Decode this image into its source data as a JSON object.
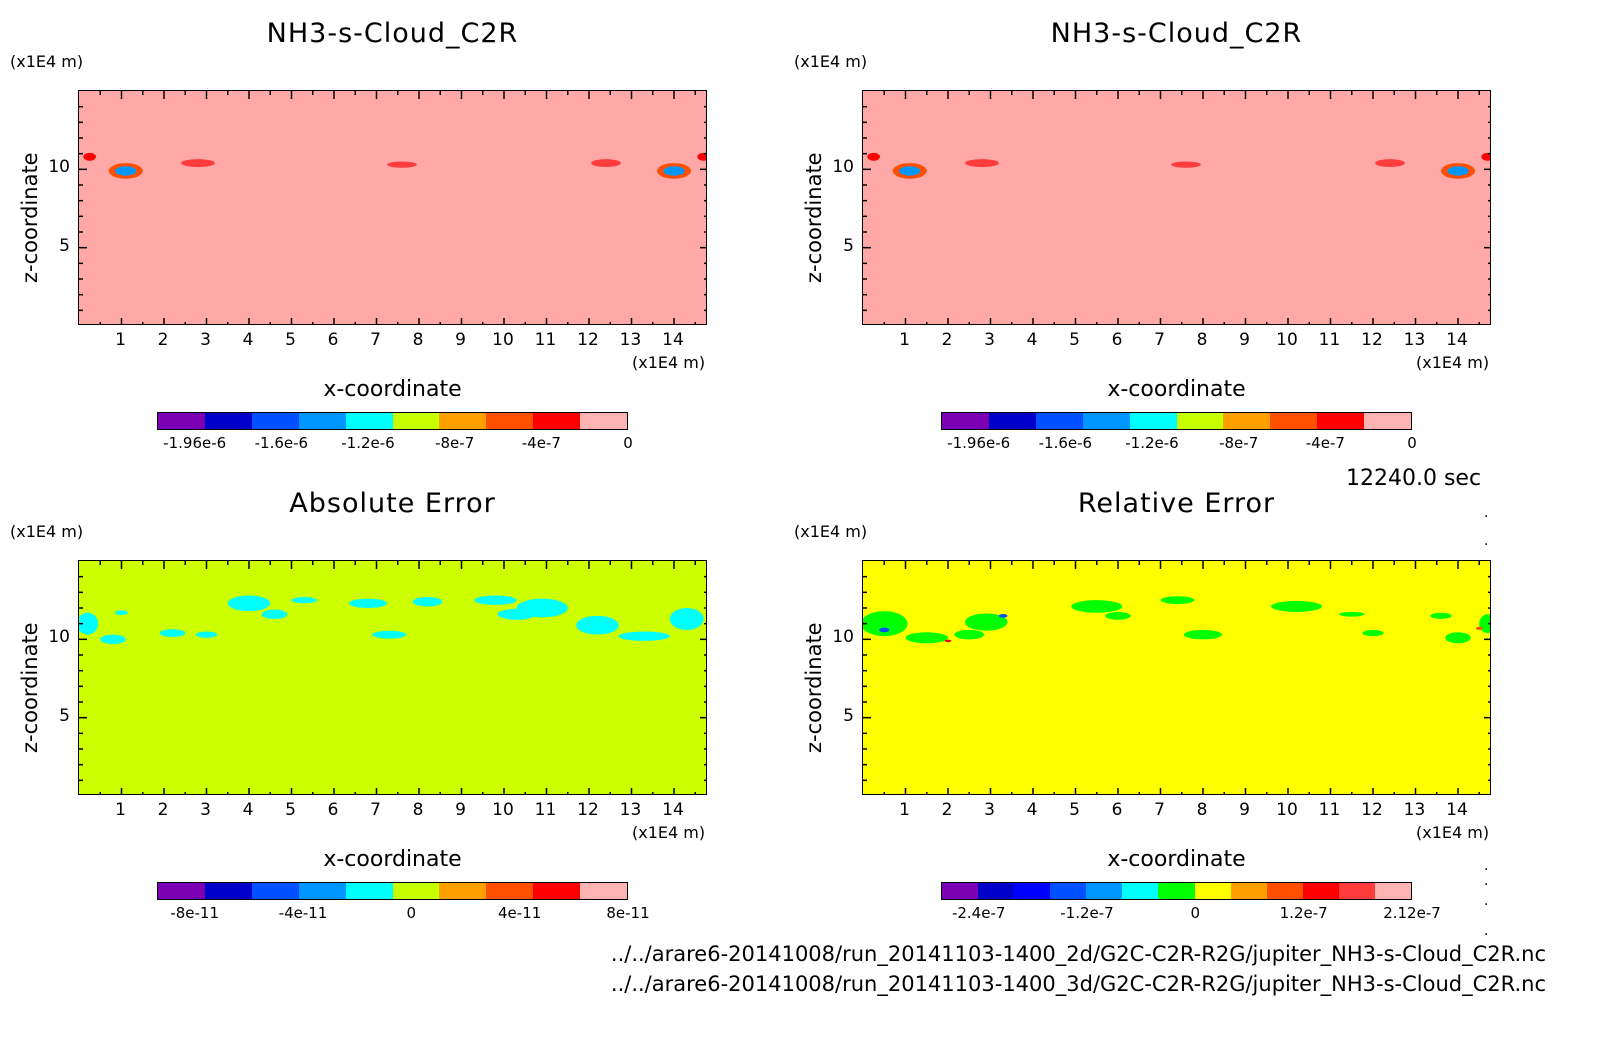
{
  "time_label": "12240.0 sec",
  "footer": {
    "line1": "../../arare6-20141008/run_20141103-1400_2d/G2C-C2R-R2G/jupiter_NH3-s-Cloud_C2R.nc",
    "line2": "../../arare6-20141008/run_20141103-1400_3d/G2C-C2R-R2G/jupiter_NH3-s-Cloud_C2R.nc"
  },
  "colors": {
    "nh3_scale": [
      "#7b00b4",
      "#0000c8",
      "#0050ff",
      "#0096ff",
      "#00ffff",
      "#c8ff00",
      "#ffa000",
      "#ff5000",
      "#ff0000",
      "#ffb4b4"
    ],
    "abs_scale": [
      "#7b00b4",
      "#0000c8",
      "#0050ff",
      "#0096ff",
      "#00ffff",
      "#c8ff00",
      "#ffa000",
      "#ff5000",
      "#ff0000",
      "#ffb4b4"
    ],
    "rel_scale": [
      "#7b00b4",
      "#0000c8",
      "#0000ff",
      "#0050ff",
      "#0096ff",
      "#00ffff",
      "#00ff00",
      "#ffff00",
      "#ffa000",
      "#ff5000",
      "#ff0000",
      "#ff3c3c",
      "#ffb4b4"
    ]
  },
  "chart_data": [
    {
      "type": "heatmap",
      "title": "NH3-s-Cloud_C2R",
      "xlabel": "x-coordinate",
      "ylabel": "z-coordinate",
      "x_unit": "(x1E4 m)",
      "y_unit": "(x1E4 m)",
      "xlim": [
        0,
        14.8
      ],
      "ylim": [
        0,
        15
      ],
      "x_ticks": [
        "1",
        "2",
        "3",
        "4",
        "5",
        "6",
        "7",
        "8",
        "9",
        "10",
        "11",
        "12",
        "13",
        "14"
      ],
      "y_ticks": [
        "5",
        "10"
      ],
      "background": "#ffa8a8",
      "colorbar_labels": [
        "-1.96e-6",
        "-1.6e-6",
        "-1.2e-6",
        "-8e-7",
        "-4e-7",
        "0"
      ],
      "features": [
        {
          "x": 1.1,
          "y": 9.9,
          "w": 0.4,
          "h": 0.5,
          "color": "#ff5000"
        },
        {
          "x": 1.1,
          "y": 9.9,
          "w": 0.25,
          "h": 0.3,
          "color": "#0096ff"
        },
        {
          "x": 2.8,
          "y": 10.4,
          "w": 0.4,
          "h": 0.25,
          "color": "#ff3c3c"
        },
        {
          "x": 7.6,
          "y": 10.3,
          "w": 0.35,
          "h": 0.2,
          "color": "#ff3c3c"
        },
        {
          "x": 12.4,
          "y": 10.4,
          "w": 0.35,
          "h": 0.25,
          "color": "#ff3c3c"
        },
        {
          "x": 14.0,
          "y": 9.9,
          "w": 0.4,
          "h": 0.5,
          "color": "#ff5000"
        },
        {
          "x": 14.0,
          "y": 9.9,
          "w": 0.25,
          "h": 0.3,
          "color": "#0096ff"
        },
        {
          "x": 0.25,
          "y": 10.8,
          "w": 0.15,
          "h": 0.25,
          "color": "#ff0000"
        },
        {
          "x": 14.7,
          "y": 10.8,
          "w": 0.15,
          "h": 0.25,
          "color": "#ff0000"
        }
      ]
    },
    {
      "type": "heatmap",
      "title": "NH3-s-Cloud_C2R",
      "xlabel": "x-coordinate",
      "ylabel": "z-coordinate",
      "x_unit": "(x1E4 m)",
      "y_unit": "(x1E4 m)",
      "xlim": [
        0,
        14.8
      ],
      "ylim": [
        0,
        15
      ],
      "x_ticks": [
        "1",
        "2",
        "3",
        "4",
        "5",
        "6",
        "7",
        "8",
        "9",
        "10",
        "11",
        "12",
        "13",
        "14"
      ],
      "y_ticks": [
        "5",
        "10"
      ],
      "background": "#ffa8a8",
      "colorbar_labels": [
        "-1.96e-6",
        "-1.6e-6",
        "-1.2e-6",
        "-8e-7",
        "-4e-7",
        "0"
      ],
      "features": [
        {
          "x": 1.1,
          "y": 9.9,
          "w": 0.4,
          "h": 0.5,
          "color": "#ff5000"
        },
        {
          "x": 1.1,
          "y": 9.9,
          "w": 0.25,
          "h": 0.3,
          "color": "#0096ff"
        },
        {
          "x": 2.8,
          "y": 10.4,
          "w": 0.4,
          "h": 0.25,
          "color": "#ff3c3c"
        },
        {
          "x": 7.6,
          "y": 10.3,
          "w": 0.35,
          "h": 0.2,
          "color": "#ff3c3c"
        },
        {
          "x": 12.4,
          "y": 10.4,
          "w": 0.35,
          "h": 0.25,
          "color": "#ff3c3c"
        },
        {
          "x": 14.0,
          "y": 9.9,
          "w": 0.4,
          "h": 0.5,
          "color": "#ff5000"
        },
        {
          "x": 14.0,
          "y": 9.9,
          "w": 0.25,
          "h": 0.3,
          "color": "#0096ff"
        },
        {
          "x": 0.25,
          "y": 10.8,
          "w": 0.15,
          "h": 0.25,
          "color": "#ff0000"
        },
        {
          "x": 14.7,
          "y": 10.8,
          "w": 0.15,
          "h": 0.25,
          "color": "#ff0000"
        }
      ]
    },
    {
      "type": "heatmap",
      "title": "Absolute Error",
      "xlabel": "x-coordinate",
      "ylabel": "z-coordinate",
      "x_unit": "(x1E4 m)",
      "y_unit": "(x1E4 m)",
      "xlim": [
        0,
        14.8
      ],
      "ylim": [
        0,
        15
      ],
      "x_ticks": [
        "1",
        "2",
        "3",
        "4",
        "5",
        "6",
        "7",
        "8",
        "9",
        "10",
        "11",
        "12",
        "13",
        "14"
      ],
      "y_ticks": [
        "5",
        "10"
      ],
      "background": "#ccff00",
      "colorbar_labels": [
        "-8e-11",
        "-4e-11",
        "0",
        "4e-11",
        "8e-11"
      ],
      "features": [
        {
          "x": 0.2,
          "y": 11.0,
          "w": 0.25,
          "h": 0.7,
          "color": "#00ffff"
        },
        {
          "x": 0.8,
          "y": 10.0,
          "w": 0.3,
          "h": 0.3,
          "color": "#00ffff"
        },
        {
          "x": 1.0,
          "y": 11.7,
          "w": 0.15,
          "h": 0.15,
          "color": "#00ffff"
        },
        {
          "x": 2.2,
          "y": 10.4,
          "w": 0.3,
          "h": 0.25,
          "color": "#00ffff"
        },
        {
          "x": 3.0,
          "y": 10.3,
          "w": 0.25,
          "h": 0.2,
          "color": "#00ffff"
        },
        {
          "x": 4.0,
          "y": 12.3,
          "w": 0.5,
          "h": 0.5,
          "color": "#00ffff"
        },
        {
          "x": 4.6,
          "y": 11.6,
          "w": 0.3,
          "h": 0.3,
          "color": "#00ffff"
        },
        {
          "x": 5.3,
          "y": 12.5,
          "w": 0.3,
          "h": 0.2,
          "color": "#00ffff"
        },
        {
          "x": 6.8,
          "y": 12.3,
          "w": 0.45,
          "h": 0.3,
          "color": "#00ffff"
        },
        {
          "x": 8.2,
          "y": 12.4,
          "w": 0.35,
          "h": 0.3,
          "color": "#00ffff"
        },
        {
          "x": 7.3,
          "y": 10.3,
          "w": 0.4,
          "h": 0.25,
          "color": "#00ffff"
        },
        {
          "x": 9.8,
          "y": 12.5,
          "w": 0.5,
          "h": 0.3,
          "color": "#00ffff"
        },
        {
          "x": 10.9,
          "y": 12.0,
          "w": 0.6,
          "h": 0.6,
          "color": "#00ffff"
        },
        {
          "x": 10.3,
          "y": 11.6,
          "w": 0.45,
          "h": 0.35,
          "color": "#00ffff"
        },
        {
          "x": 12.2,
          "y": 10.9,
          "w": 0.5,
          "h": 0.6,
          "color": "#00ffff"
        },
        {
          "x": 13.3,
          "y": 10.2,
          "w": 0.6,
          "h": 0.3,
          "color": "#00ffff"
        },
        {
          "x": 14.3,
          "y": 11.3,
          "w": 0.4,
          "h": 0.7,
          "color": "#00ffff"
        }
      ]
    },
    {
      "type": "heatmap",
      "title": "Relative Error",
      "xlabel": "x-coordinate",
      "ylabel": "z-coordinate",
      "x_unit": "(x1E4 m)",
      "y_unit": "(x1E4 m)",
      "xlim": [
        0,
        14.8
      ],
      "ylim": [
        0,
        15
      ],
      "x_ticks": [
        "1",
        "2",
        "3",
        "4",
        "5",
        "6",
        "7",
        "8",
        "9",
        "10",
        "11",
        "12",
        "13",
        "14"
      ],
      "y_ticks": [
        "5",
        "10"
      ],
      "background": "#ffff00",
      "colorbar_labels": [
        "-2.4e-7",
        "-1.2e-7",
        "0",
        "1.2e-7",
        "2.12e-7"
      ],
      "features": [
        {
          "x": 0.5,
          "y": 11.0,
          "w": 0.55,
          "h": 0.8,
          "color": "#00ff00"
        },
        {
          "x": 1.5,
          "y": 10.1,
          "w": 0.5,
          "h": 0.35,
          "color": "#00ff00"
        },
        {
          "x": 2.9,
          "y": 11.1,
          "w": 0.5,
          "h": 0.55,
          "color": "#00ff00"
        },
        {
          "x": 2.5,
          "y": 10.3,
          "w": 0.35,
          "h": 0.3,
          "color": "#00ff00"
        },
        {
          "x": 3.3,
          "y": 11.5,
          "w": 0.1,
          "h": 0.12,
          "color": "#0050ff"
        },
        {
          "x": 0.5,
          "y": 10.6,
          "w": 0.12,
          "h": 0.15,
          "color": "#0050ff"
        },
        {
          "x": 2.0,
          "y": 9.9,
          "w": 0.08,
          "h": 0.08,
          "color": "#ff0000"
        },
        {
          "x": 5.5,
          "y": 12.1,
          "w": 0.6,
          "h": 0.4,
          "color": "#00ff00"
        },
        {
          "x": 6.0,
          "y": 11.5,
          "w": 0.3,
          "h": 0.25,
          "color": "#00ff00"
        },
        {
          "x": 7.4,
          "y": 12.5,
          "w": 0.4,
          "h": 0.25,
          "color": "#00ff00"
        },
        {
          "x": 8.0,
          "y": 10.3,
          "w": 0.45,
          "h": 0.3,
          "color": "#00ff00"
        },
        {
          "x": 10.2,
          "y": 12.1,
          "w": 0.6,
          "h": 0.35,
          "color": "#00ff00"
        },
        {
          "x": 11.5,
          "y": 11.6,
          "w": 0.3,
          "h": 0.15,
          "color": "#00ff00"
        },
        {
          "x": 12.0,
          "y": 10.4,
          "w": 0.25,
          "h": 0.2,
          "color": "#00ff00"
        },
        {
          "x": 13.6,
          "y": 11.5,
          "w": 0.25,
          "h": 0.2,
          "color": "#00ff00"
        },
        {
          "x": 14.0,
          "y": 10.1,
          "w": 0.3,
          "h": 0.35,
          "color": "#00ff00"
        },
        {
          "x": 14.7,
          "y": 11.0,
          "w": 0.2,
          "h": 0.6,
          "color": "#00ff00"
        },
        {
          "x": 14.5,
          "y": 10.7,
          "w": 0.08,
          "h": 0.1,
          "color": "#ff5000"
        }
      ]
    }
  ]
}
